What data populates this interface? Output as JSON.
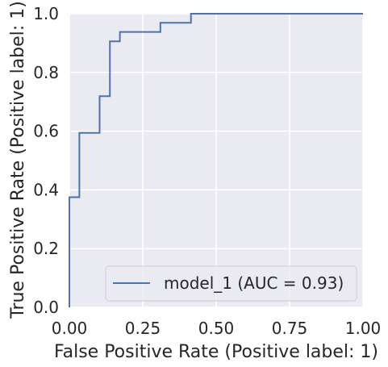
{
  "chart_data": {
    "type": "line",
    "xlabel": "False Positive Rate (Positive label: 1)",
    "ylabel": "True Positive Rate (Positive label: 1)",
    "xlim": [
      0.0,
      1.0
    ],
    "ylim": [
      0.0,
      1.0
    ],
    "xticks": [
      "0.00",
      "0.25",
      "0.50",
      "0.75",
      "1.00"
    ],
    "yticks": [
      "0.0",
      "0.2",
      "0.4",
      "0.6",
      "0.8",
      "1.0"
    ],
    "grid": true,
    "legend_position": "lower-right",
    "background_color": "#eaeaf2",
    "grid_color": "#ffffff",
    "series": [
      {
        "name": "model_1 (AUC = 0.93)",
        "color": "#4c72b0",
        "points": [
          [
            0.0,
            0.0
          ],
          [
            0.0,
            0.375
          ],
          [
            0.034,
            0.375
          ],
          [
            0.034,
            0.594
          ],
          [
            0.103,
            0.594
          ],
          [
            0.103,
            0.719
          ],
          [
            0.138,
            0.719
          ],
          [
            0.138,
            0.906
          ],
          [
            0.172,
            0.906
          ],
          [
            0.172,
            0.938
          ],
          [
            0.31,
            0.938
          ],
          [
            0.31,
            0.969
          ],
          [
            0.414,
            0.969
          ],
          [
            0.414,
            1.0
          ],
          [
            1.0,
            1.0
          ]
        ]
      }
    ]
  }
}
